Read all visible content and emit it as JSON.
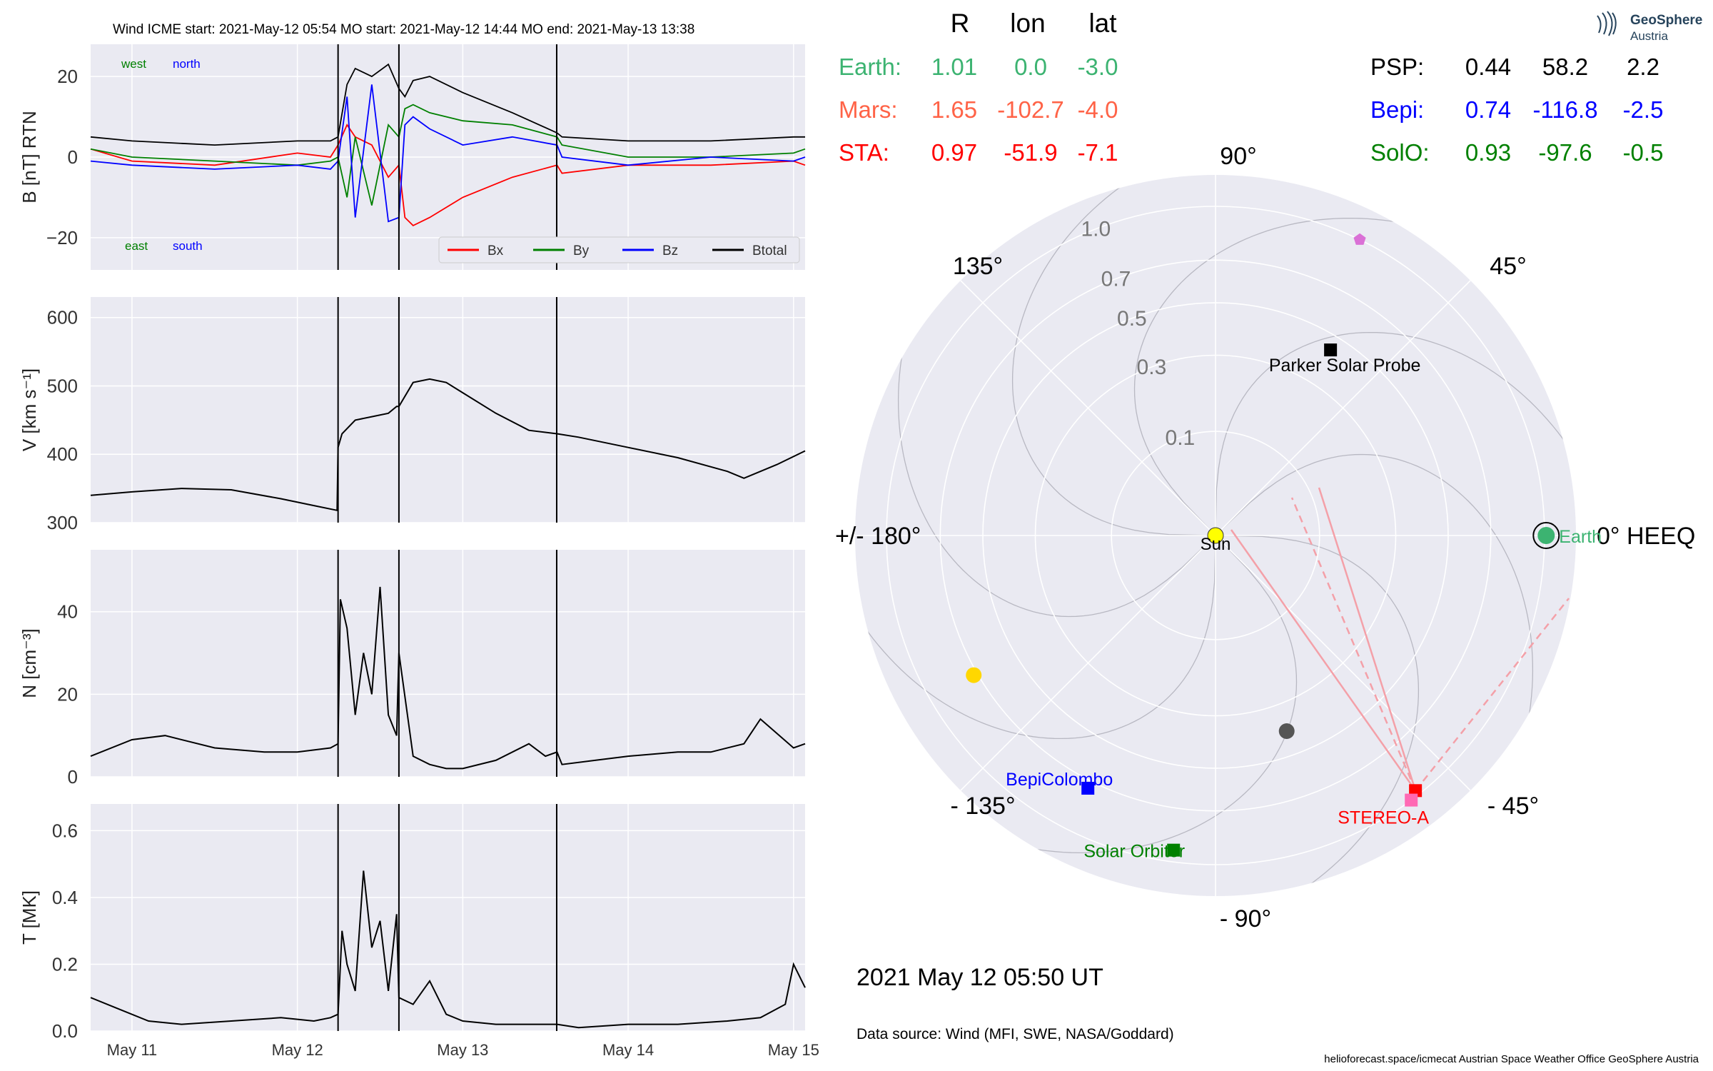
{
  "header": {
    "title": "Wind    ICME start: 2021-May-12 05:54   MO start: 2021-May-12 14:44   MO end: 2021-May-13 13:38",
    "timestamp": "2021 May 12  05:50 UT",
    "data_source": "Data source: Wind (MFI, SWE, NASA/Goddard)",
    "credits": "helioforecast.space/icmecat   Austrian Space Weather Office   GeoSphere Austria",
    "logo": {
      "line1": "GeoSphere",
      "line2": "Austria"
    }
  },
  "colors": {
    "panel_bg": "#eaeaf2",
    "grid": "#ffffff",
    "bx": "#ff0000",
    "by": "#008000",
    "bz": "#0000ff",
    "btotal": "#000000",
    "earth": "#3cb371",
    "mars": "#ff6347",
    "sta": "#ff0000",
    "psp": "#000000",
    "bepi": "#0000ff",
    "solo": "#008000"
  },
  "chart_data": [
    {
      "type": "line",
      "panel": "B",
      "ylabel": "B [nT] RTN",
      "ylim": [
        -28,
        28
      ],
      "yticks": [
        {
          "v": 20,
          "label": "20"
        },
        {
          "v": 0,
          "label": "0"
        },
        {
          "v": -20,
          "label": "−20"
        }
      ],
      "annotations": [
        {
          "text": "west",
          "color": "#008000"
        },
        {
          "text": "north",
          "color": "#0000ff"
        },
        {
          "text": "east",
          "color": "#008000"
        },
        {
          "text": "south",
          "color": "#0000ff"
        }
      ],
      "legend_position": "bottom-right",
      "series": [
        {
          "name": "Bx",
          "color": "#ff0000",
          "x": [
            10.75,
            11.0,
            11.5,
            12.0,
            12.2,
            12.246,
            12.3,
            12.35,
            12.45,
            12.55,
            12.614,
            12.65,
            12.7,
            12.8,
            13.0,
            13.3,
            13.57,
            13.6,
            14.0,
            14.5,
            15.0,
            15.07
          ],
          "y": [
            2,
            -1,
            -2,
            1,
            0,
            3,
            8,
            5,
            3,
            -5,
            -2,
            -15,
            -17,
            -15,
            -10,
            -5,
            -2,
            -4,
            -2,
            -2,
            -1,
            -2
          ]
        },
        {
          "name": "By",
          "color": "#008000",
          "x": [
            10.75,
            11.0,
            11.5,
            12.0,
            12.2,
            12.246,
            12.3,
            12.35,
            12.45,
            12.55,
            12.614,
            12.65,
            12.7,
            12.8,
            13.0,
            13.3,
            13.57,
            13.6,
            14.0,
            14.5,
            15.0,
            15.07
          ],
          "y": [
            2,
            0,
            -1,
            -2,
            -1,
            0,
            -10,
            5,
            -12,
            8,
            5,
            12,
            13,
            11,
            9,
            8,
            5,
            3,
            0,
            0,
            1,
            2
          ]
        },
        {
          "name": "Bz",
          "color": "#0000ff",
          "x": [
            10.75,
            11.0,
            11.5,
            12.0,
            12.2,
            12.246,
            12.3,
            12.35,
            12.45,
            12.55,
            12.614,
            12.65,
            12.7,
            12.8,
            13.0,
            13.3,
            13.57,
            13.6,
            14.0,
            14.5,
            15.0,
            15.07
          ],
          "y": [
            -1,
            -2,
            -3,
            -2,
            -3,
            -1,
            15,
            -15,
            18,
            -16,
            -15,
            8,
            10,
            7,
            3,
            5,
            3,
            0,
            -2,
            0,
            -1,
            0
          ]
        },
        {
          "name": "Btotal",
          "color": "#000000",
          "x": [
            10.75,
            11.0,
            11.5,
            12.0,
            12.2,
            12.246,
            12.3,
            12.35,
            12.45,
            12.55,
            12.614,
            12.65,
            12.7,
            12.8,
            13.0,
            13.3,
            13.57,
            13.6,
            14.0,
            14.5,
            15.0,
            15.07
          ],
          "y": [
            5,
            4,
            3,
            4,
            4,
            5,
            18,
            22,
            20,
            23,
            17,
            15,
            19,
            20,
            16,
            11,
            6,
            5,
            4,
            4,
            5,
            5
          ]
        }
      ]
    },
    {
      "type": "line",
      "panel": "V",
      "ylabel": "V [km s⁻¹]",
      "ylim": [
        300,
        630
      ],
      "yticks": [
        {
          "v": 600,
          "label": "600"
        },
        {
          "v": 500,
          "label": "500"
        },
        {
          "v": 400,
          "label": "400"
        },
        {
          "v": 300,
          "label": "300"
        }
      ],
      "series": [
        {
          "name": "V",
          "color": "#000000",
          "x": [
            10.75,
            11.0,
            11.3,
            11.6,
            11.9,
            12.1,
            12.24,
            12.246,
            12.27,
            12.35,
            12.45,
            12.55,
            12.6,
            12.614,
            12.7,
            12.8,
            12.9,
            13.0,
            13.2,
            13.4,
            13.57,
            13.7,
            14.0,
            14.3,
            14.6,
            14.7,
            14.9,
            15.07
          ],
          "y": [
            340,
            345,
            350,
            348,
            335,
            325,
            318,
            410,
            430,
            450,
            455,
            460,
            470,
            470,
            505,
            510,
            505,
            490,
            460,
            435,
            430,
            425,
            410,
            395,
            375,
            365,
            385,
            405
          ]
        }
      ]
    },
    {
      "type": "line",
      "panel": "N",
      "ylabel": "N [cm⁻³]",
      "ylim": [
        0,
        55
      ],
      "yticks": [
        {
          "v": 40,
          "label": "40"
        },
        {
          "v": 20,
          "label": "20"
        },
        {
          "v": 0,
          "label": "0"
        }
      ],
      "series": [
        {
          "name": "N",
          "color": "#000000",
          "x": [
            10.75,
            11.0,
            11.2,
            11.5,
            11.8,
            12.0,
            12.2,
            12.246,
            12.26,
            12.3,
            12.35,
            12.4,
            12.45,
            12.5,
            12.55,
            12.6,
            12.614,
            12.7,
            12.8,
            12.9,
            13.0,
            13.2,
            13.4,
            13.5,
            13.57,
            13.6,
            13.8,
            14.0,
            14.3,
            14.5,
            14.7,
            14.8,
            15.0,
            15.07
          ],
          "y": [
            5,
            9,
            10,
            7,
            6,
            6,
            7,
            8,
            43,
            36,
            15,
            30,
            20,
            46,
            15,
            10,
            30,
            5,
            3,
            2,
            2,
            4,
            8,
            5,
            6,
            3,
            4,
            5,
            6,
            6,
            8,
            14,
            7,
            8
          ]
        }
      ]
    },
    {
      "type": "line",
      "panel": "T",
      "ylabel": "T [MK]",
      "ylim": [
        0,
        0.68
      ],
      "yticks": [
        {
          "v": 0.6,
          "label": "0.6"
        },
        {
          "v": 0.4,
          "label": "0.4"
        },
        {
          "v": 0.2,
          "label": "0.2"
        },
        {
          "v": 0.0,
          "label": "0.0"
        }
      ],
      "xlim": [
        10.75,
        15.07
      ],
      "xticks": [
        {
          "v": 11,
          "label": "May 11"
        },
        {
          "v": 12,
          "label": "May 12"
        },
        {
          "v": 13,
          "label": "May 13"
        },
        {
          "v": 14,
          "label": "May 14"
        },
        {
          "v": 15,
          "label": "May 15"
        }
      ],
      "series": [
        {
          "name": "T",
          "color": "#000000",
          "x": [
            10.75,
            10.9,
            11.1,
            11.3,
            11.6,
            11.9,
            12.1,
            12.2,
            12.246,
            12.27,
            12.3,
            12.35,
            12.4,
            12.45,
            12.5,
            12.55,
            12.6,
            12.614,
            12.7,
            12.8,
            12.9,
            13.0,
            13.2,
            13.4,
            13.57,
            13.7,
            14.0,
            14.3,
            14.6,
            14.8,
            14.95,
            15.0,
            15.07
          ],
          "y": [
            0.1,
            0.07,
            0.03,
            0.02,
            0.03,
            0.04,
            0.03,
            0.04,
            0.05,
            0.3,
            0.2,
            0.12,
            0.48,
            0.25,
            0.33,
            0.12,
            0.35,
            0.1,
            0.08,
            0.15,
            0.05,
            0.03,
            0.02,
            0.02,
            0.02,
            0.01,
            0.02,
            0.02,
            0.03,
            0.04,
            0.08,
            0.2,
            0.13
          ]
        }
      ]
    }
  ],
  "events": {
    "times": [
      12.246,
      12.614,
      13.568
    ],
    "labels": [
      "ICME start",
      "MO start",
      "MO end"
    ]
  },
  "orbit_plot": {
    "type": "polar",
    "radial_ticks": [
      "0.1",
      "0.3",
      "0.5",
      "0.7",
      "1.0"
    ],
    "radial_values": [
      0.1,
      0.3,
      0.5,
      0.7,
      1.0
    ],
    "angle_labels": [
      "90°",
      "45°",
      "0° HEEQ",
      "- 45°",
      "- 90°",
      "- 135°",
      "+/- 180°",
      "135°"
    ],
    "sun_label": "Sun",
    "objects": [
      {
        "name": "Earth",
        "label": "Earth",
        "r": 1.01,
        "lon": 0.0,
        "color": "#3cb371",
        "marker": "circle-ringed"
      },
      {
        "name": "Parker Solar Probe",
        "label": "Parker Solar Probe",
        "r": 0.44,
        "lon": 58.2,
        "color": "#000000",
        "marker": "square"
      },
      {
        "name": "BepiColombo",
        "label": "BepiColombo",
        "r": 0.74,
        "lon": -116.8,
        "color": "#0000ff",
        "marker": "square"
      },
      {
        "name": "Solar Orbiter",
        "label": "Solar Orbiter",
        "r": 0.93,
        "lon": -97.6,
        "color": "#008000",
        "marker": "square"
      },
      {
        "name": "STEREO-A",
        "label": "STEREO-A",
        "r": 0.97,
        "lon": -51.9,
        "color": "#ff0000",
        "marker": "square"
      },
      {
        "name": "Mercury",
        "label": "",
        "r": 0.4,
        "lon": -70.0,
        "color": "#555555",
        "marker": "circle"
      },
      {
        "name": "Venus",
        "label": "",
        "r": 0.72,
        "lon": -150.0,
        "color": "#ffd700",
        "marker": "circle"
      },
      {
        "name": "Mars",
        "label": "",
        "r": 1.65,
        "lon": -102.7,
        "color": "#ff6347",
        "marker": "none"
      },
      {
        "name": "pentagon-object",
        "label": "",
        "r": 1.0,
        "lon": 64.0,
        "color": "#da70d6",
        "marker": "pentagon"
      },
      {
        "name": "sta-magenta-marker",
        "label": "",
        "r": 1.0,
        "lon": -53.5,
        "color": "#ff69b4",
        "marker": "square"
      }
    ],
    "table_headers": [
      "R",
      "lon",
      "lat"
    ],
    "table_left": [
      {
        "label": "Earth:",
        "r": "1.01",
        "lon": "0.0",
        "lat": "-3.0",
        "color": "#3cb371"
      },
      {
        "label": "Mars:",
        "r": "1.65",
        "lon": "-102.7",
        "lat": "-4.0",
        "color": "#ff6347"
      },
      {
        "label": "STA:",
        "r": "0.97",
        "lon": "-51.9",
        "lat": "-7.1",
        "color": "#ff0000"
      }
    ],
    "table_right": [
      {
        "label": "PSP:",
        "r": "0.44",
        "lon": "58.2",
        "lat": "2.2",
        "color": "#000000"
      },
      {
        "label": "Bepi:",
        "r": "0.74",
        "lon": "-116.8",
        "lat": "-2.5",
        "color": "#0000ff"
      },
      {
        "label": "SolO:",
        "r": "0.93",
        "lon": "-97.6",
        "lat": "-0.5",
        "color": "#008000"
      }
    ]
  }
}
